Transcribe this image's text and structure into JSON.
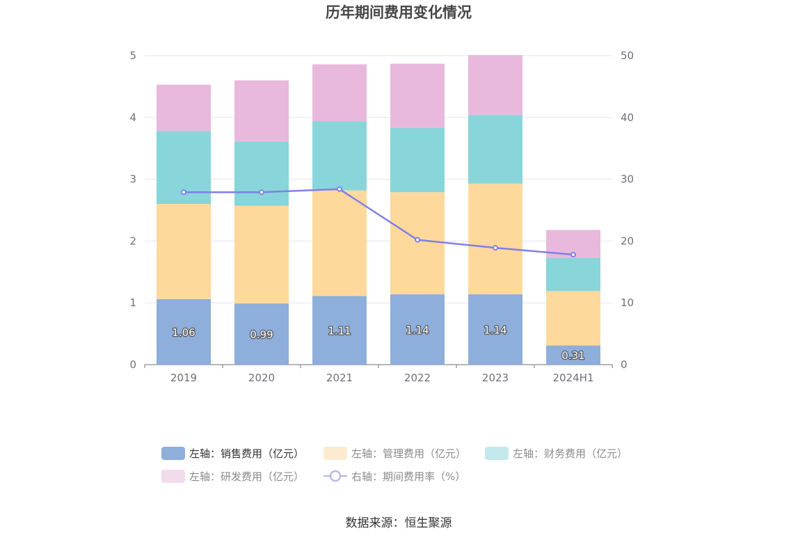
{
  "chart_data": {
    "type": "bar",
    "title": "历年期间费用变化情况",
    "categories": [
      "2019",
      "2020",
      "2021",
      "2022",
      "2023",
      "2024H1"
    ],
    "y_left_ticks": [
      "0",
      "1",
      "2",
      "3",
      "4",
      "5"
    ],
    "y_right_ticks": [
      "0",
      "10",
      "20",
      "30",
      "40",
      "50"
    ],
    "y_left_lim": [
      0,
      5
    ],
    "y_right_lim": [
      0,
      50
    ],
    "grid": true,
    "stacked": true,
    "series": [
      {
        "name": "左轴：销售费用（亿元）",
        "axis": "left",
        "type": "bar",
        "color": "#8eaedb",
        "values": [
          1.06,
          0.99,
          1.11,
          1.14,
          1.14,
          0.31
        ],
        "labels": [
          "1.06",
          "0.99",
          "1.11",
          "1.14",
          "1.14",
          "0.31"
        ]
      },
      {
        "name": "左轴：管理费用（亿元）",
        "axis": "left",
        "type": "bar",
        "color": "#ffd89c",
        "values": [
          1.54,
          1.58,
          1.71,
          1.65,
          1.79,
          0.88
        ]
      },
      {
        "name": "左轴：财务费用（亿元）",
        "axis": "left",
        "type": "bar",
        "color": "#88d5da",
        "values": [
          1.18,
          1.04,
          1.12,
          1.04,
          1.11,
          0.54
        ]
      },
      {
        "name": "左轴：研发费用（亿元）",
        "axis": "left",
        "type": "bar",
        "color": "#e8b9dc",
        "values": [
          0.75,
          0.99,
          0.92,
          1.04,
          0.97,
          0.45
        ]
      },
      {
        "name": "右轴：期间费用率（%）",
        "axis": "right",
        "type": "line",
        "color": "#7f7fe8",
        "values": [
          27.9,
          27.9,
          28.4,
          20.2,
          18.9,
          17.8
        ]
      }
    ],
    "legend_position": "bottom",
    "source": "数据来源：恒生聚源"
  }
}
